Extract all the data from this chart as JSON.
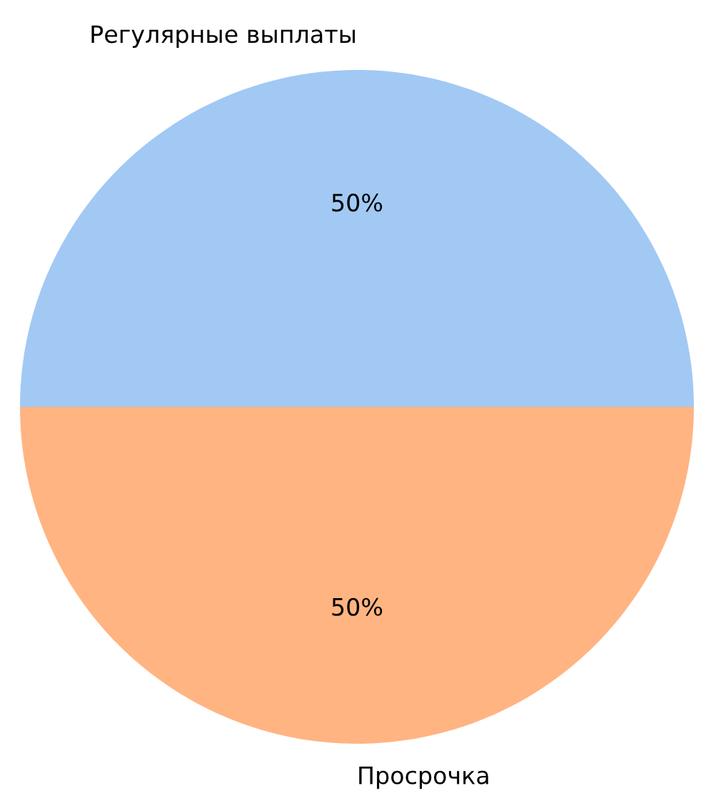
{
  "chart_data": {
    "type": "pie",
    "categories": [
      "Регулярные выплаты",
      "Просрочка"
    ],
    "values": [
      50,
      50
    ],
    "colors": [
      "#a1c9f4",
      "#ffb482"
    ],
    "value_labels": [
      "50%",
      "50%"
    ]
  }
}
